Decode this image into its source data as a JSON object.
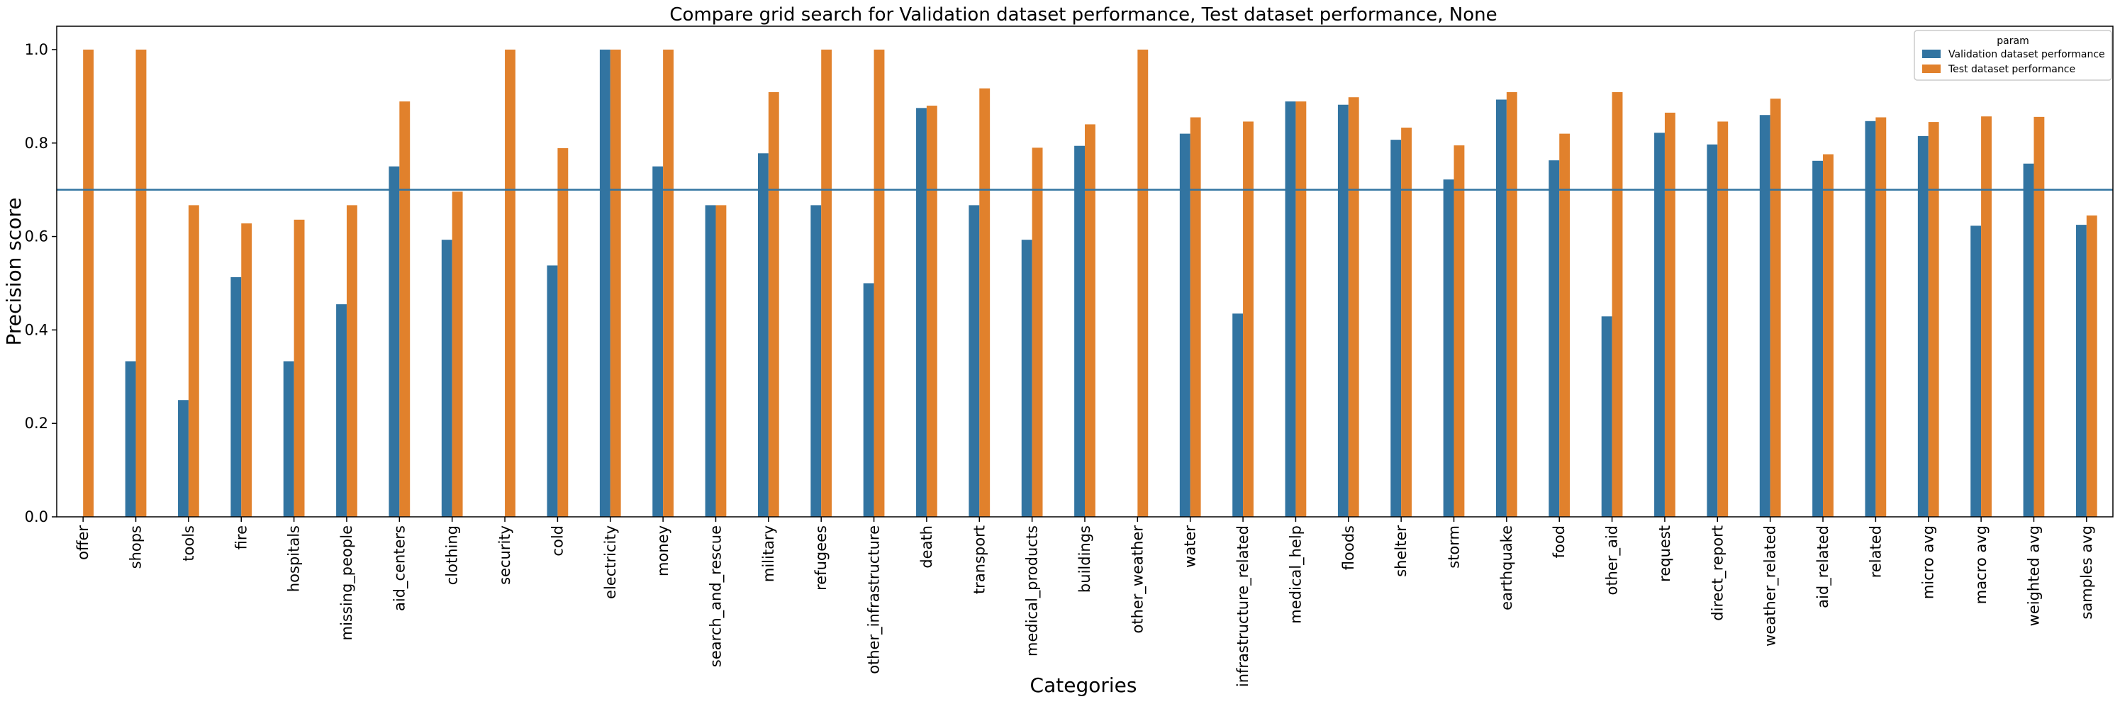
{
  "chart_data": {
    "type": "bar",
    "title": "Compare grid search for Validation dataset performance, Test dataset performance, None",
    "xlabel": "Categories",
    "ylabel": "Precision score",
    "ylim": [
      0,
      1.05
    ],
    "yticks": [
      "0.0",
      "0.2",
      "0.4",
      "0.6",
      "0.8",
      "1.0"
    ],
    "ytick_values": [
      0.0,
      0.2,
      0.4,
      0.6,
      0.8,
      1.0
    ],
    "grid": false,
    "threshold_line": 0.7,
    "threshold_color": "#3274a1",
    "legend": {
      "title": "param",
      "placement": "top-right"
    },
    "categories": [
      "offer",
      "shops",
      "tools",
      "fire",
      "hospitals",
      "missing_people",
      "aid_centers",
      "clothing",
      "security",
      "cold",
      "electricity",
      "money",
      "search_and_rescue",
      "military",
      "refugees",
      "other_infrastructure",
      "death",
      "transport",
      "medical_products",
      "buildings",
      "other_weather",
      "water",
      "infrastructure_related",
      "medical_help",
      "floods",
      "shelter",
      "storm",
      "earthquake",
      "food",
      "other_aid",
      "request",
      "direct_report",
      "weather_related",
      "aid_related",
      "related",
      "micro avg",
      "macro avg",
      "weighted avg",
      "samples avg"
    ],
    "series": [
      {
        "name": "Validation dataset performance",
        "color": "#3274a1",
        "values": [
          0.0,
          0.333,
          0.25,
          0.513,
          0.333,
          0.455,
          0.75,
          0.593,
          0.0,
          0.538,
          1.0,
          0.75,
          0.667,
          0.778,
          0.667,
          0.5,
          0.875,
          0.667,
          0.593,
          0.794,
          0.0,
          0.82,
          0.435,
          0.889,
          0.882,
          0.807,
          0.722,
          0.893,
          0.763,
          0.429,
          0.822,
          0.797,
          0.86,
          0.762,
          0.847,
          0.815,
          0.623,
          0.756,
          0.625
        ]
      },
      {
        "name": "Test dataset performance",
        "color": "#e1812c",
        "values": [
          1.0,
          1.0,
          0.667,
          0.628,
          0.636,
          0.667,
          0.889,
          0.696,
          1.0,
          0.789,
          1.0,
          1.0,
          0.667,
          0.909,
          1.0,
          1.0,
          0.88,
          0.917,
          0.79,
          0.84,
          1.0,
          0.855,
          0.846,
          0.889,
          0.898,
          0.833,
          0.795,
          0.909,
          0.82,
          0.909,
          0.865,
          0.846,
          0.895,
          0.776,
          0.855,
          0.845,
          0.857,
          0.856,
          0.645
        ]
      }
    ]
  }
}
